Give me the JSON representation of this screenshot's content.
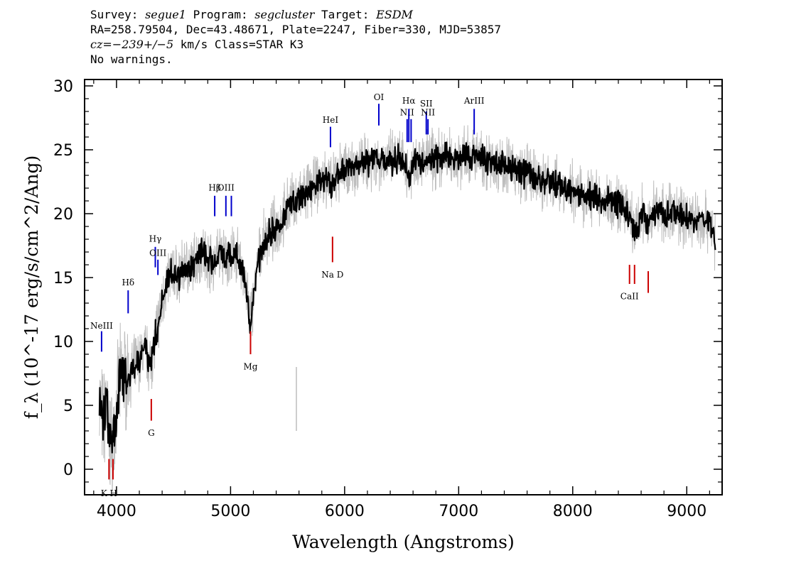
{
  "header": {
    "survey_label": "Survey:",
    "survey": "segue1",
    "program_label": "Program:",
    "program": "segcluster",
    "target_label": "Target:",
    "target": "ESDM",
    "line2": "RA=258.79504, Dec=43.48671, Plate=2247, Fiber=330, MJD=53857",
    "cz_label": "cz=",
    "cz_value": "−239+/−5",
    "cz_rest": " km/s Class=STAR K3",
    "line4": "No warnings."
  },
  "chart_data": {
    "type": "line",
    "title": "",
    "xlabel": "Wavelength (Angstroms)",
    "ylabel": "f_λ (10^-17 erg/s/cm^2/Ang)",
    "xlim": [
      3720,
      9310
    ],
    "ylim": [
      -2,
      30.5
    ],
    "x_ticks": [
      4000,
      5000,
      6000,
      7000,
      8000,
      9000
    ],
    "y_ticks": [
      0,
      5,
      10,
      15,
      20,
      25,
      30
    ],
    "series": [
      {
        "style": "black-smoothed-flux",
        "color": "#000000",
        "points": [
          [
            3850,
            5.5
          ],
          [
            3880,
            3.5
          ],
          [
            3910,
            5.0
          ],
          [
            3935,
            2.5
          ],
          [
            3960,
            1.8
          ],
          [
            3990,
            3.5
          ],
          [
            4020,
            6.5
          ],
          [
            4060,
            7.5
          ],
          [
            4100,
            7.0
          ],
          [
            4150,
            8.0
          ],
          [
            4200,
            8.5
          ],
          [
            4250,
            9.5
          ],
          [
            4300,
            8.0
          ],
          [
            4340,
            10.5
          ],
          [
            4380,
            12.0
          ],
          [
            4420,
            14.0
          ],
          [
            4460,
            15.0
          ],
          [
            4500,
            15.5
          ],
          [
            4550,
            15.0
          ],
          [
            4600,
            16.0
          ],
          [
            4650,
            15.8
          ],
          [
            4700,
            16.5
          ],
          [
            4750,
            17.0
          ],
          [
            4800,
            16.5
          ],
          [
            4850,
            16.2
          ],
          [
            4900,
            17.0
          ],
          [
            4950,
            16.5
          ],
          [
            5000,
            16.5
          ],
          [
            5050,
            16.8
          ],
          [
            5100,
            15.5
          ],
          [
            5150,
            13.5
          ],
          [
            5170,
            11.5
          ],
          [
            5200,
            13.5
          ],
          [
            5250,
            16.5
          ],
          [
            5300,
            18.0
          ],
          [
            5350,
            18.5
          ],
          [
            5400,
            19.0
          ],
          [
            5450,
            19.5
          ],
          [
            5500,
            20.5
          ],
          [
            5550,
            21.0
          ],
          [
            5600,
            21.2
          ],
          [
            5650,
            21.5
          ],
          [
            5700,
            22.0
          ],
          [
            5750,
            22.2
          ],
          [
            5800,
            22.5
          ],
          [
            5850,
            22.8
          ],
          [
            5890,
            21.8
          ],
          [
            5920,
            23.0
          ],
          [
            6000,
            23.5
          ],
          [
            6100,
            23.8
          ],
          [
            6200,
            24.0
          ],
          [
            6300,
            24.2
          ],
          [
            6400,
            24.2
          ],
          [
            6500,
            24.3
          ],
          [
            6563,
            23.0
          ],
          [
            6600,
            24.2
          ],
          [
            6700,
            24.3
          ],
          [
            6800,
            24.3
          ],
          [
            6900,
            24.4
          ],
          [
            7000,
            24.3
          ],
          [
            7100,
            24.5
          ],
          [
            7200,
            24.3
          ],
          [
            7300,
            24.0
          ],
          [
            7400,
            23.8
          ],
          [
            7500,
            23.5
          ],
          [
            7600,
            23.0
          ],
          [
            7700,
            22.5
          ],
          [
            7800,
            22.5
          ],
          [
            7900,
            22.2
          ],
          [
            8000,
            21.8
          ],
          [
            8100,
            21.5
          ],
          [
            8200,
            21.3
          ],
          [
            8300,
            21.0
          ],
          [
            8400,
            20.8
          ],
          [
            8498,
            19.8
          ],
          [
            8542,
            18.5
          ],
          [
            8600,
            20.0
          ],
          [
            8662,
            19.0
          ],
          [
            8700,
            20.2
          ],
          [
            8800,
            20.0
          ],
          [
            8900,
            20.0
          ],
          [
            9000,
            19.8
          ],
          [
            9100,
            19.5
          ],
          [
            9200,
            19.5
          ],
          [
            9250,
            17.8
          ]
        ]
      },
      {
        "style": "gray-raw-flux",
        "color": "#bdbdbd"
      }
    ],
    "emission_lines": [
      {
        "label": "NeIII",
        "wavelength": 3869,
        "y_bottom": 9.2,
        "y_top": 10.8,
        "label_y": 11.0,
        "color": "#0000cc"
      },
      {
        "label": "Hδ",
        "wavelength": 4102,
        "y_bottom": 12.2,
        "y_top": 14.0,
        "label_y": 14.4,
        "color": "#0000cc"
      },
      {
        "label": "Hγ",
        "wavelength": 4340,
        "y_bottom": 15.8,
        "y_top": 17.4,
        "label_y": 17.8,
        "color": "#0000cc"
      },
      {
        "label": "OIII",
        "wavelength": 4363,
        "y_bottom": 15.2,
        "y_top": 16.4,
        "label_y": 16.7,
        "color": "#0000cc"
      },
      {
        "label": "Hβ",
        "wavelength": 4861,
        "y_bottom": 19.8,
        "y_top": 21.4,
        "label_y": 21.8,
        "color": "#0000cc"
      },
      {
        "label": "OIII",
        "wavelength": 4959,
        "y_bottom": 19.8,
        "y_top": 21.4,
        "label_y": 21.8,
        "color": "#0000cc"
      },
      {
        "label": "",
        "wavelength": 5007,
        "y_bottom": 19.8,
        "y_top": 21.4,
        "label_y": 21.8,
        "color": "#0000cc"
      },
      {
        "label": "HeI",
        "wavelength": 5876,
        "y_bottom": 25.2,
        "y_top": 26.8,
        "label_y": 27.1,
        "color": "#0000cc"
      },
      {
        "label": "OI",
        "wavelength": 6300,
        "y_bottom": 26.9,
        "y_top": 28.6,
        "label_y": 28.9,
        "color": "#0000cc"
      },
      {
        "label": "NII",
        "wavelength": 6548,
        "y_bottom": 25.6,
        "y_top": 27.4,
        "label_y": 27.7,
        "color": "#0000cc"
      },
      {
        "label": "Hα",
        "wavelength": 6563,
        "y_bottom": 25.6,
        "y_top": 28.2,
        "label_y": 28.6,
        "color": "#0000cc"
      },
      {
        "label": "",
        "wavelength": 6583,
        "y_bottom": 25.6,
        "y_top": 27.4,
        "label_y": 27.7,
        "color": "#0000cc"
      },
      {
        "label": "SII",
        "wavelength": 6716,
        "y_bottom": 26.2,
        "y_top": 28.0,
        "label_y": 28.4,
        "color": "#0000cc"
      },
      {
        "label": "NII",
        "wavelength": 6731,
        "y_bottom": 26.2,
        "y_top": 27.4,
        "label_y": 27.7,
        "color": "#0000cc"
      },
      {
        "label": "ArIII",
        "wavelength": 7136,
        "y_bottom": 26.2,
        "y_top": 28.2,
        "label_y": 28.6,
        "color": "#0000cc"
      }
    ],
    "absorption_lines": [
      {
        "label": "K H",
        "wavelength": 3934,
        "y_bottom": -0.8,
        "y_top": 0.8,
        "label_y": -1.6,
        "color": "#cc0000"
      },
      {
        "label": "",
        "wavelength": 3969,
        "y_bottom": -0.8,
        "y_top": 0.8,
        "color": "#cc0000"
      },
      {
        "label": "G",
        "wavelength": 4305,
        "y_bottom": 3.8,
        "y_top": 5.5,
        "label_y": 3.1,
        "color": "#cc0000"
      },
      {
        "label": "Mg",
        "wavelength": 5175,
        "y_bottom": 9.0,
        "y_top": 10.8,
        "label_y": 8.3,
        "color": "#cc0000"
      },
      {
        "label": "Na D",
        "wavelength": 5894,
        "y_bottom": 16.2,
        "y_top": 18.2,
        "label_y": 15.5,
        "color": "#cc0000"
      },
      {
        "label": "CaII",
        "wavelength": 8498,
        "y_bottom": 14.5,
        "y_top": 16.0,
        "label_y": 13.8,
        "color": "#cc0000"
      },
      {
        "label": "",
        "wavelength": 8542,
        "y_bottom": 14.5,
        "y_top": 16.0,
        "color": "#cc0000"
      },
      {
        "label": "",
        "wavelength": 8662,
        "y_bottom": 13.8,
        "y_top": 15.5,
        "color": "#cc0000"
      }
    ]
  }
}
